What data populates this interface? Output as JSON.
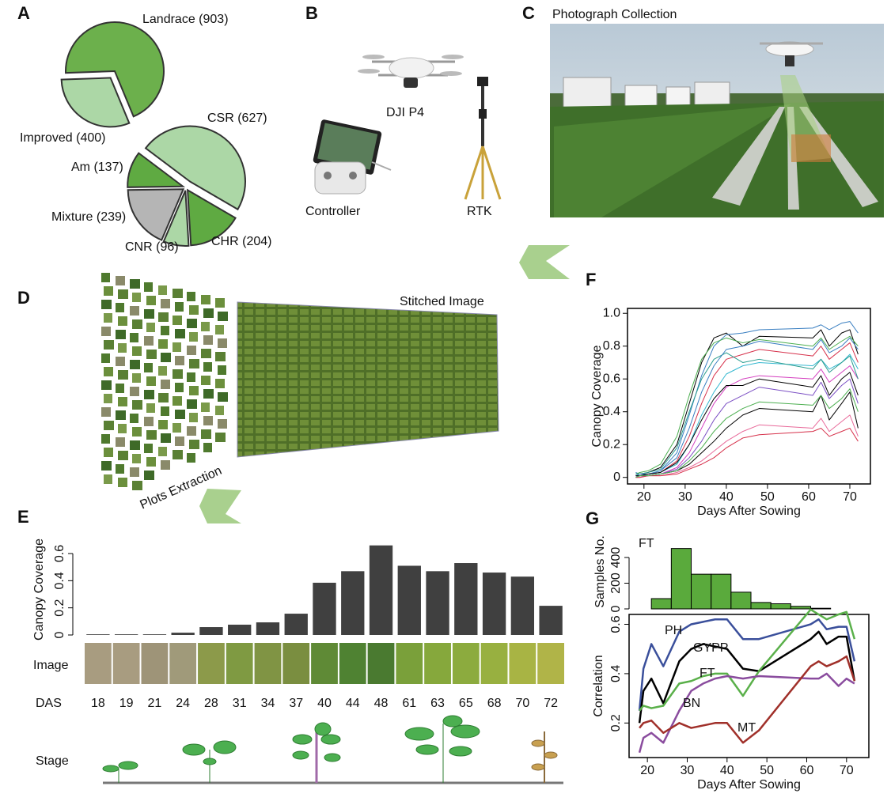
{
  "panel_labels": [
    "A",
    "B",
    "C",
    "D",
    "E",
    "F",
    "G"
  ],
  "figure_texts": {
    "drone": "DJI P4",
    "controller": "Controller",
    "rtk": "RTK",
    "photo": "Photograph Collection",
    "stitched": "Stitched Image",
    "plots": "Plots Extraction",
    "image_row": "Image",
    "stage_row": "Stage"
  },
  "chart_data": [
    {
      "type": "pie",
      "categories": [
        "Landrace (903)",
        "Improved (400)"
      ],
      "values": [
        903,
        400
      ],
      "colors": [
        "#6cb04c",
        "#acd7a6"
      ]
    },
    {
      "type": "pie",
      "categories": [
        "CSR (627)",
        "CHR (204)",
        "CNR (96)",
        "Mixture (239)",
        "Am (137)"
      ],
      "values": [
        627,
        204,
        96,
        239,
        137
      ],
      "colors": [
        "#acd7a6",
        "#5faa42",
        "#acd7a6",
        "#b5b5b5",
        "#5faa42"
      ]
    },
    {
      "type": "bar",
      "ylabel": "Canopy Coverage",
      "xlabel": "DAS",
      "categories": [
        "18",
        "19",
        "21",
        "24",
        "28",
        "31",
        "34",
        "37",
        "40",
        "44",
        "48",
        "61",
        "63",
        "65",
        "68",
        "70",
        "72"
      ],
      "values": [
        0.005,
        0.005,
        0.005,
        0.017,
        0.058,
        0.076,
        0.093,
        0.157,
        0.385,
        0.47,
        0.66,
        0.51,
        0.47,
        0.53,
        0.46,
        0.43,
        0.215
      ],
      "color": "#404040",
      "ylim": [
        0,
        0.67
      ],
      "yticks": [
        0,
        0.2,
        0.4,
        0.6
      ]
    },
    {
      "type": "line",
      "xlabel": "Days After Sowing",
      "ylabel": "Canopy Coverage",
      "x": [
        18,
        19,
        21,
        24,
        28,
        31,
        34,
        37,
        40,
        44,
        48,
        61,
        63,
        65,
        68,
        70,
        72
      ],
      "xlim": [
        16,
        75
      ],
      "xticks": [
        20,
        30,
        40,
        50,
        60,
        70
      ],
      "ylim": [
        -0.04,
        1.03
      ],
      "yticks": [
        0,
        0.2,
        0.4,
        0.6,
        0.8,
        {
          "value": 1,
          "label": "1.0"
        }
      ],
      "series": [
        {
          "color": "#000000",
          "values": [
            0.02,
            0.02,
            0.03,
            0.06,
            0.2,
            0.45,
            0.7,
            0.85,
            0.88,
            0.8,
            0.86,
            0.85,
            0.9,
            0.8,
            0.88,
            0.9,
            0.75
          ]
        },
        {
          "color": "#3a7fc1",
          "values": [
            0.03,
            0.02,
            0.02,
            0.04,
            0.15,
            0.38,
            0.62,
            0.8,
            0.87,
            0.88,
            0.9,
            0.91,
            0.93,
            0.9,
            0.94,
            0.95,
            0.88
          ]
        },
        {
          "color": "#d6304a",
          "values": [
            0.01,
            0.01,
            0.02,
            0.03,
            0.1,
            0.25,
            0.45,
            0.62,
            0.72,
            0.75,
            0.78,
            0.74,
            0.8,
            0.72,
            0.78,
            0.82,
            0.7
          ]
        },
        {
          "color": "#4caf50",
          "values": [
            0.02,
            0.03,
            0.04,
            0.08,
            0.25,
            0.5,
            0.72,
            0.82,
            0.85,
            0.82,
            0.84,
            0.8,
            0.85,
            0.78,
            0.83,
            0.86,
            0.8
          ]
        },
        {
          "color": "#d43fbf",
          "values": [
            0.01,
            0.01,
            0.01,
            0.02,
            0.06,
            0.15,
            0.3,
            0.45,
            0.55,
            0.6,
            0.62,
            0.6,
            0.66,
            0.58,
            0.64,
            0.68,
            0.6
          ]
        },
        {
          "color": "#35b8d0",
          "values": [
            0.01,
            0.01,
            0.02,
            0.03,
            0.08,
            0.2,
            0.38,
            0.52,
            0.63,
            0.68,
            0.7,
            0.68,
            0.72,
            0.66,
            0.7,
            0.75,
            0.66
          ]
        },
        {
          "color": "#000000",
          "values": [
            0,
            0.01,
            0.01,
            0.02,
            0.04,
            0.08,
            0.15,
            0.22,
            0.3,
            0.38,
            0.42,
            0.4,
            0.5,
            0.35,
            0.45,
            0.52,
            0.3
          ]
        },
        {
          "color": "#7b4fc4",
          "values": [
            0.01,
            0.01,
            0.01,
            0.02,
            0.05,
            0.12,
            0.22,
            0.35,
            0.45,
            0.5,
            0.55,
            0.5,
            0.58,
            0.48,
            0.56,
            0.6,
            0.45
          ]
        },
        {
          "color": "#e86a9a",
          "values": [
            0,
            0,
            0.01,
            0.01,
            0.03,
            0.06,
            0.1,
            0.16,
            0.22,
            0.28,
            0.32,
            0.3,
            0.36,
            0.28,
            0.34,
            0.38,
            0.25
          ]
        },
        {
          "color": "#2a9d8f",
          "values": [
            0.02,
            0.02,
            0.03,
            0.05,
            0.18,
            0.4,
            0.6,
            0.72,
            0.76,
            0.7,
            0.72,
            0.66,
            0.72,
            0.64,
            0.7,
            0.74,
            0.6
          ]
        },
        {
          "color": "#d6304a",
          "values": [
            0,
            0,
            0.01,
            0.01,
            0.02,
            0.05,
            0.08,
            0.12,
            0.18,
            0.24,
            0.26,
            0.28,
            0.3,
            0.25,
            0.28,
            0.3,
            0.22
          ]
        },
        {
          "color": "#3a7fc1",
          "values": [
            0.01,
            0.02,
            0.02,
            0.04,
            0.12,
            0.3,
            0.52,
            0.68,
            0.78,
            0.8,
            0.83,
            0.78,
            0.84,
            0.76,
            0.8,
            0.85,
            0.78
          ]
        },
        {
          "color": "#000000",
          "values": [
            0.01,
            0.01,
            0.02,
            0.03,
            0.09,
            0.2,
            0.35,
            0.48,
            0.56,
            0.56,
            0.6,
            0.55,
            0.62,
            0.5,
            0.6,
            0.64,
            0.5
          ]
        },
        {
          "color": "#4caf50",
          "values": [
            0,
            0.01,
            0.01,
            0.02,
            0.04,
            0.1,
            0.18,
            0.28,
            0.36,
            0.42,
            0.46,
            0.44,
            0.5,
            0.42,
            0.48,
            0.54,
            0.4
          ]
        }
      ]
    },
    {
      "type": "histogram",
      "annotation": "FT",
      "ylabel": "Samples No.",
      "bins": [
        21,
        26,
        31,
        36,
        41,
        46,
        51,
        56,
        61,
        66
      ],
      "values": [
        80,
        470,
        270,
        270,
        130,
        50,
        40,
        20,
        5
      ],
      "color": "#5aaa3c",
      "xlim": [
        15.4,
        75.6
      ],
      "ylim": [
        0,
        480
      ],
      "yticks": [
        0,
        200,
        400
      ]
    },
    {
      "type": "line",
      "xlabel": "Days After Sowing",
      "ylabel": "Correlation",
      "x": [
        18,
        19,
        21,
        24,
        28,
        31,
        34,
        37,
        40,
        44,
        48,
        61,
        63,
        65,
        68,
        70,
        72
      ],
      "xlim": [
        15.4,
        75.6
      ],
      "xticks": [
        20,
        30,
        40,
        50,
        60,
        70
      ],
      "ylim": [
        0.06,
        0.64
      ],
      "yticks": [
        0.2,
        0.4,
        0.6
      ],
      "series": [
        {
          "name": "PH",
          "color": "#3a4f9b",
          "values": [
            0.25,
            0.42,
            0.52,
            0.43,
            0.57,
            0.6,
            0.61,
            0.62,
            0.62,
            0.54,
            0.54,
            0.6,
            0.62,
            0.58,
            0.59,
            0.59,
            0.45
          ]
        },
        {
          "name": "GYPP",
          "color": "#000000",
          "values": [
            0.2,
            0.33,
            0.38,
            0.28,
            0.45,
            0.5,
            0.52,
            0.51,
            0.5,
            0.42,
            0.41,
            0.54,
            0.57,
            0.52,
            0.55,
            0.55,
            0.37
          ]
        },
        {
          "name": "FT",
          "color": "#5ab04a",
          "values": [
            0.25,
            0.27,
            0.26,
            0.27,
            0.36,
            0.37,
            0.39,
            0.4,
            0.4,
            0.31,
            0.41,
            0.66,
            0.64,
            0.62,
            0.64,
            0.65,
            0.54
          ]
        },
        {
          "name": "BN",
          "color": "#8a4c9e",
          "values": [
            0.08,
            0.14,
            0.16,
            0.12,
            0.25,
            0.33,
            0.36,
            0.38,
            0.39,
            0.38,
            0.39,
            0.38,
            0.38,
            0.4,
            0.35,
            0.38,
            0.36
          ]
        },
        {
          "name": "MT",
          "color": "#a0302a",
          "values": [
            0.18,
            0.2,
            0.21,
            0.16,
            0.2,
            0.18,
            0.19,
            0.2,
            0.2,
            0.12,
            0.17,
            0.43,
            0.45,
            0.43,
            0.45,
            0.47,
            0.37
          ]
        }
      ]
    }
  ]
}
